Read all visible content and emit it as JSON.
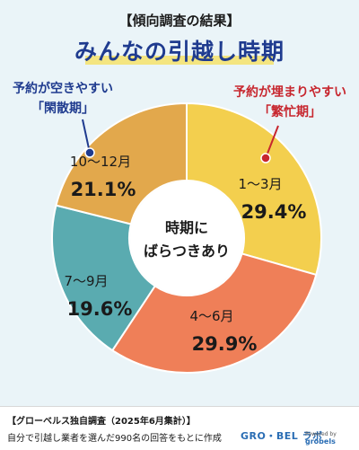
{
  "header": {
    "subtitle": "【傾向調査の結果】",
    "title": "みんなの引越し時期"
  },
  "callouts": {
    "left": {
      "line1": "予約が空きやすい",
      "line2": "「閑散期」"
    },
    "right": {
      "line1": "予約が埋まりやすい",
      "line2": "「繁忙期」"
    }
  },
  "chart_data": {
    "type": "pie",
    "donut": true,
    "center_label": [
      "時期に",
      "ばらつきあり"
    ],
    "slices": [
      {
        "label": "1〜3月",
        "value": 29.4,
        "value_label": "29.4%",
        "color": "#f3cf4e"
      },
      {
        "label": "4〜6月",
        "value": 29.9,
        "value_label": "29.9%",
        "color": "#ef7f58"
      },
      {
        "label": "7〜9月",
        "value": 19.6,
        "value_label": "19.6%",
        "color": "#5aabb0"
      },
      {
        "label": "10〜12月",
        "value": 21.1,
        "value_label": "21.1%",
        "color": "#e2a84c"
      }
    ],
    "start_angle_deg": 0,
    "direction": "clockwise",
    "colors": {
      "text": "#1a1a1a",
      "separator": "#ffffff",
      "center": "#ffffff"
    }
  },
  "footer": {
    "line1": "【グローベルス独自調査（2025年6月集計）】",
    "line2": "自分で引越し業者を選んだ990名の回答をもとに作成",
    "brand": "GRO・BEL ラボ",
    "brand_sub_prefix": "Powered by",
    "brand_sub_name": "grobels"
  }
}
